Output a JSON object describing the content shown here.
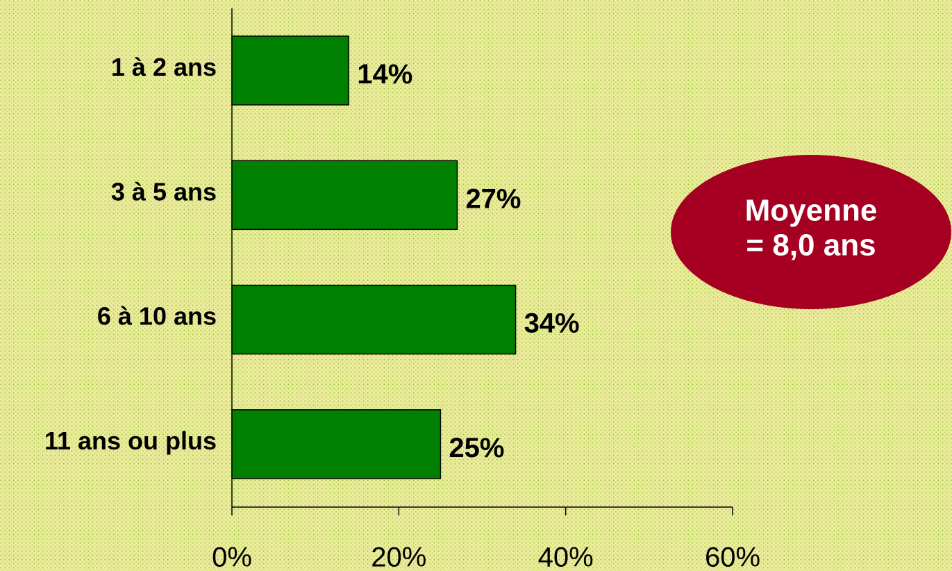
{
  "chart_data": {
    "type": "barh",
    "categories": [
      "1 à 2 ans",
      "3 à 5 ans",
      "6 à 10 ans",
      "11 ans ou plus"
    ],
    "values": [
      14,
      27,
      34,
      25
    ],
    "value_labels": [
      "14%",
      "27%",
      "34%",
      "25%"
    ],
    "color": "#008000",
    "xlim": [
      0,
      60
    ],
    "xticks": [
      {
        "value": 0,
        "label": "0%"
      },
      {
        "value": 20,
        "label": "20%"
      },
      {
        "value": 40,
        "label": "40%"
      },
      {
        "value": 60,
        "label": "60%"
      }
    ],
    "annotation": [
      "Moyenne",
      "= 8,0 ans"
    ],
    "annotation_color": "#a50021"
  }
}
